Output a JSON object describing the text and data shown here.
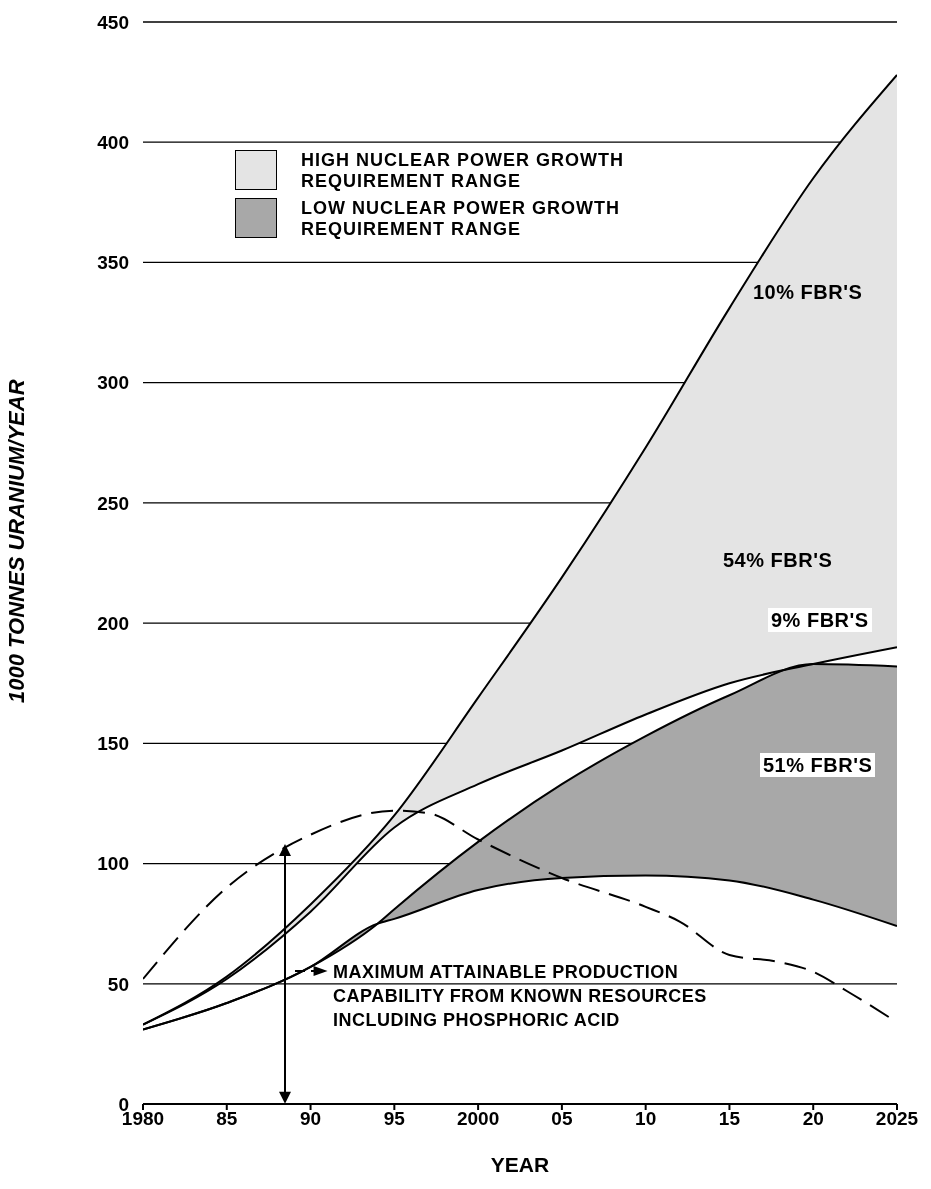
{
  "chart_data": {
    "type": "line",
    "xlabel": "YEAR",
    "ylabel": "1000 TONNES URANIUM/YEAR",
    "xlim": [
      1980,
      2025
    ],
    "xticks": [
      1980,
      {
        "value": 1985,
        "label": "85"
      },
      {
        "value": 1990,
        "label": "90"
      },
      {
        "value": 1995,
        "label": "95"
      },
      2000,
      {
        "value": 2005,
        "label": "05"
      },
      {
        "value": 2010,
        "label": "10"
      },
      {
        "value": 2015,
        "label": "15"
      },
      {
        "value": 2020,
        "label": "20"
      },
      2025
    ],
    "ylim": [
      0,
      450
    ],
    "yticks": [
      0,
      50,
      100,
      150,
      200,
      250,
      300,
      350,
      400,
      450
    ],
    "grid": "y",
    "legend": "top left",
    "series": [
      {
        "name": "HIGH NUCLEAR POWER GROWTH REQUIREMENT RANGE",
        "color": "#000000",
        "x": [
          1980,
          1985,
          1990,
          1995,
          2000,
          2005,
          2010,
          2015,
          2020,
          2025
        ],
        "values": [
          33,
          53,
          83,
          120,
          169,
          219,
          273,
          331,
          385,
          428
        ],
        "lower": [
          33,
          52,
          80,
          115,
          133,
          147,
          162,
          175,
          183,
          190
        ],
        "upper": [
          33,
          53,
          83,
          120,
          169,
          219,
          273,
          331,
          385,
          428
        ]
      },
      {
        "color": "#000000",
        "x": [
          1980,
          1985,
          1990,
          1995,
          2000,
          2005,
          2010,
          2015,
          2020,
          2025
        ],
        "values": [
          33,
          52,
          80,
          115,
          133,
          147,
          162,
          175,
          183,
          190
        ]
      },
      {
        "name": "LOW NUCLEAR POWER GROWTH REQUIREMENT RANGE",
        "color": "#000000",
        "x": [
          1980,
          1985,
          1990,
          1994,
          1995,
          2000,
          2005,
          2010,
          2015,
          2020,
          2025
        ],
        "values": [
          31,
          42,
          57,
          75,
          81,
          109,
          133,
          153,
          170,
          183,
          182
        ],
        "lower": [
          31,
          42,
          57,
          75,
          77,
          89,
          94,
          95,
          93,
          85,
          74
        ],
        "upper": [
          31,
          42,
          57,
          75,
          81,
          109,
          133,
          153,
          170,
          183,
          182
        ]
      },
      {
        "color": "#000000",
        "x": [
          1980,
          1985,
          1990,
          1994,
          1995,
          2000,
          2005,
          2010,
          2015,
          2020,
          2025
        ],
        "values": [
          31,
          42,
          57,
          75,
          77,
          89,
          94,
          95,
          93,
          85,
          74
        ]
      },
      {
        "color": "#000000",
        "line_style": "dashed",
        "x": [
          1980,
          1985,
          1990,
          1995,
          1997,
          2000,
          2005,
          2010,
          2012,
          2015,
          2018,
          2020,
          2022,
          2025
        ],
        "values": [
          52,
          90,
          112,
          122,
          121,
          110,
          94,
          82,
          76,
          62,
          59,
          55,
          47,
          34
        ]
      }
    ],
    "annotations": [
      "10% FBR'S",
      "54% FBR'S",
      "9% FBR'S",
      "51% FBR'S",
      "MAXIMUM ATTAINABLE PRODUCTION CAPABILITY FROM KNOWN RESOURCES INCLUDING PHOSPHORIC ACID"
    ]
  }
}
